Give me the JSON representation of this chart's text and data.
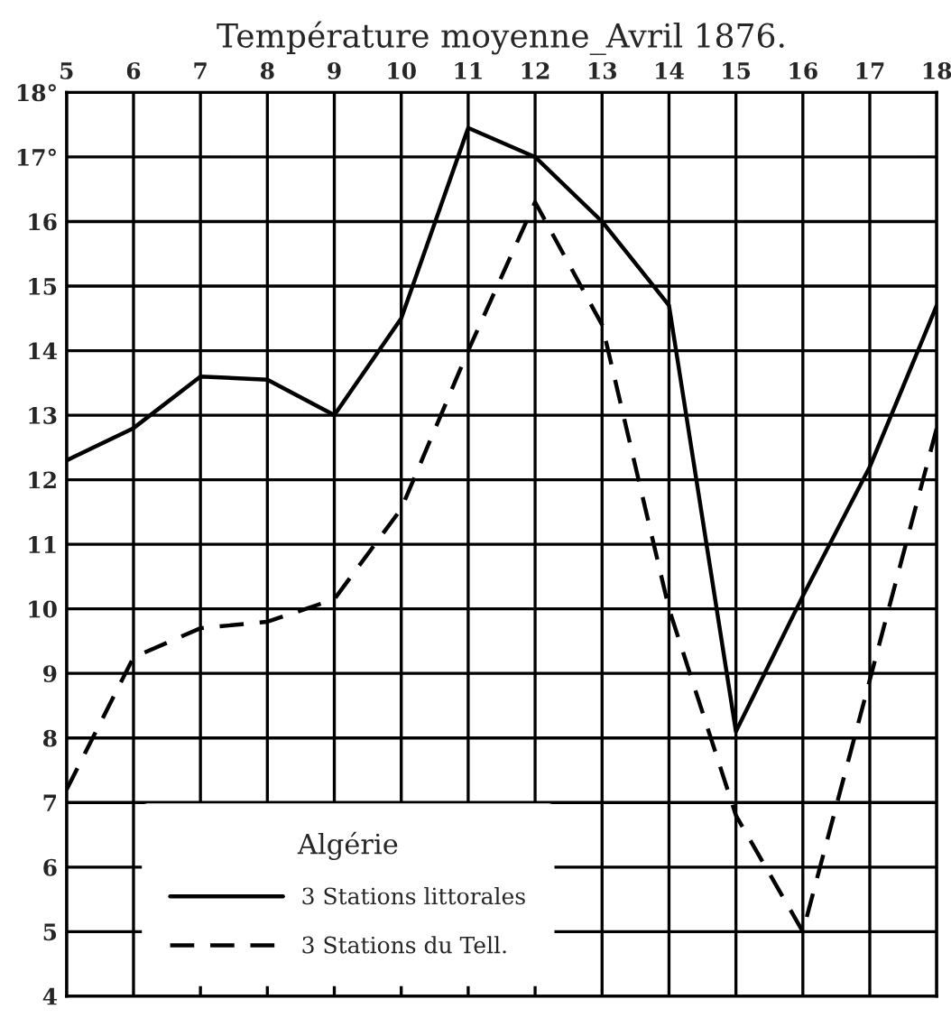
{
  "chart_data": {
    "type": "line",
    "title": "Température moyenne_Avril 1876.",
    "legend_title": "Algérie",
    "x": [
      5,
      6,
      7,
      8,
      9,
      10,
      11,
      12,
      13,
      14,
      15,
      16,
      17,
      18
    ],
    "series": [
      {
        "name": "3 Stations littorales",
        "color": "#000000",
        "line_style": "solid",
        "values": [
          12.3,
          12.8,
          13.6,
          13.55,
          13.0,
          14.5,
          17.45,
          17.0,
          16.0,
          14.7,
          8.1,
          10.2,
          12.2,
          14.7
        ]
      },
      {
        "name": "3 Stations du Tell.",
        "color": "#000000",
        "line_style": "dashed",
        "values": [
          7.2,
          9.25,
          9.7,
          9.8,
          10.15,
          11.55,
          14.0,
          16.3,
          14.4,
          10.0,
          6.8,
          5.0,
          8.9,
          12.8
        ]
      }
    ],
    "xlim": [
      5,
      18
    ],
    "xticks": [
      5,
      6,
      7,
      8,
      9,
      10,
      11,
      12,
      13,
      14,
      15,
      16,
      17,
      18
    ],
    "ylim": [
      4,
      18
    ],
    "yticks": [
      4,
      5,
      6,
      7,
      8,
      9,
      10,
      11,
      12,
      13,
      14,
      15,
      16,
      {
        "value": 17,
        "label": "17°"
      },
      {
        "value": 18,
        "label": "18°"
      }
    ],
    "grid": true,
    "legend": "bottom left",
    "marker": "none"
  }
}
